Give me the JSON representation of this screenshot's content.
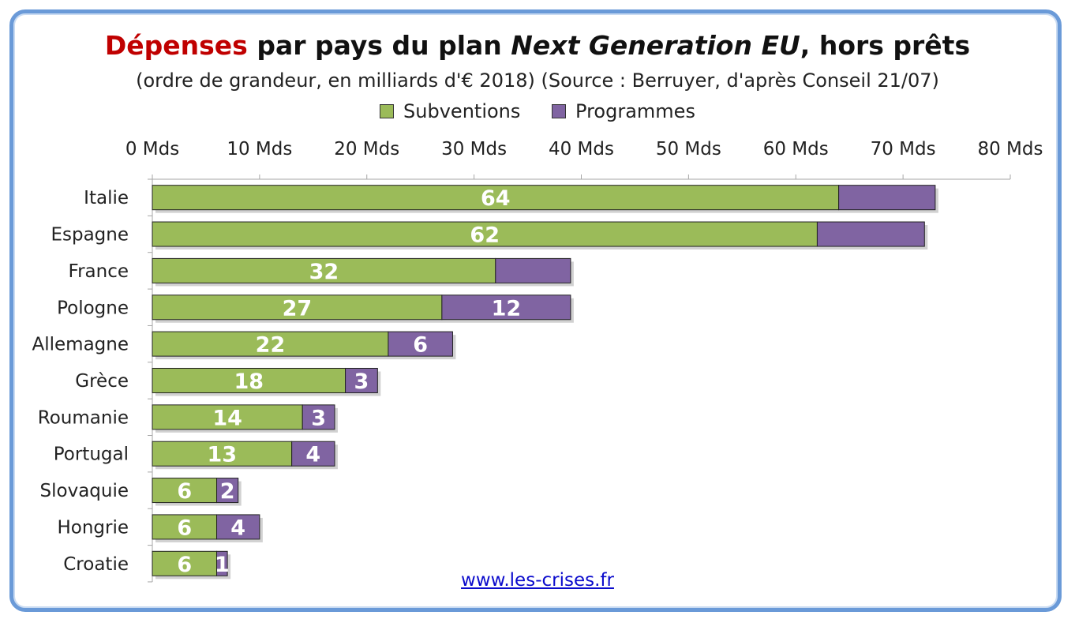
{
  "title": {
    "part1": "Dépenses",
    "part2": " par pays du plan ",
    "part3": "Next Generation EU",
    "part4": ", hors prêts"
  },
  "subtitle": "(ordre de grandeur, en milliards d'€ 2018) (Source : Berruyer, d'après Conseil 21/07)",
  "legend": {
    "series1": "Subventions",
    "series2": "Programmes"
  },
  "source_link": "www.les-crises.fr",
  "colors": {
    "subventions": "#9bbb59",
    "programmes": "#8064a2",
    "accent_title": "#c00000",
    "frame": "#6a9ad8",
    "label_text": "#ffffff"
  },
  "chart_data": {
    "type": "bar",
    "orientation": "horizontal",
    "stacked": true,
    "categories": [
      "Italie",
      "Espagne",
      "France",
      "Pologne",
      "Allemagne",
      "Grèce",
      "Roumanie",
      "Portugal",
      "Slovaquie",
      "Hongrie",
      "Croatie"
    ],
    "series": [
      {
        "name": "Subventions",
        "values": [
          64,
          62,
          32,
          27,
          22,
          18,
          14,
          13,
          6,
          6,
          6
        ],
        "labels": [
          "64",
          "62",
          "32",
          "27",
          "22",
          "18",
          "14",
          "13",
          "6",
          "6",
          "6"
        ]
      },
      {
        "name": "Programmes",
        "values": [
          9,
          10,
          7,
          12,
          6,
          3,
          3,
          4,
          2,
          4,
          1
        ],
        "labels": [
          "",
          "",
          "",
          "12",
          "6",
          "3",
          "3",
          "4",
          "2",
          "4",
          "1"
        ]
      }
    ],
    "xlim": [
      0,
      80
    ],
    "xticks": [
      0,
      10,
      20,
      30,
      40,
      50,
      60,
      70,
      80
    ],
    "xtick_labels": [
      "0 Mds",
      "10 Mds",
      "20 Mds",
      "30 Mds",
      "40 Mds",
      "50 Mds",
      "60 Mds",
      "70 Mds",
      "80 Mds"
    ],
    "axis_position": "top",
    "grid": false,
    "legend_position": "top"
  }
}
